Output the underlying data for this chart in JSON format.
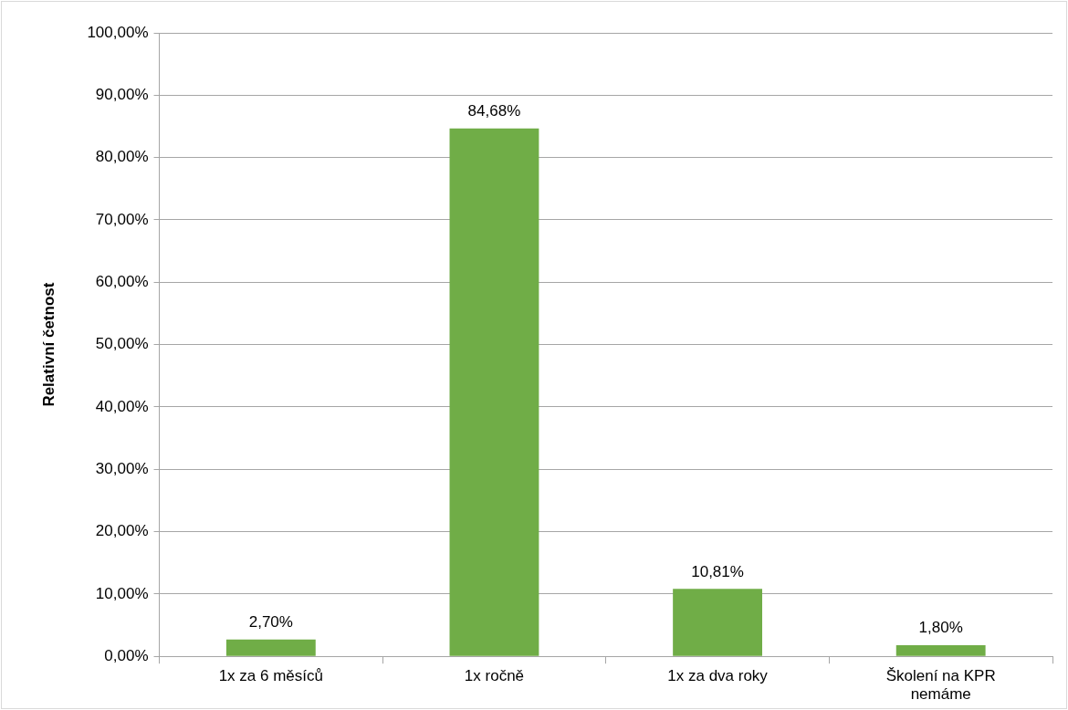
{
  "chart_data": {
    "type": "bar",
    "ylabel": "Relativní četnost",
    "categories": [
      "1x za 6 měsíců",
      "1x ročně",
      "1x za dva roky",
      "Školení na KPR nemáme"
    ],
    "values": [
      2.7,
      84.68,
      10.81,
      1.8
    ],
    "value_labels": [
      "2,70%",
      "84,68%",
      "10,81%",
      "1,80%"
    ],
    "color": "#70ad47",
    "ylim": [
      0,
      100
    ],
    "yticks": [
      {
        "value": 0,
        "label": "0,00%"
      },
      {
        "value": 10,
        "label": "10,00%"
      },
      {
        "value": 20,
        "label": "20,00%"
      },
      {
        "value": 30,
        "label": "30,00%"
      },
      {
        "value": 40,
        "label": "40,00%"
      },
      {
        "value": 50,
        "label": "50,00%"
      },
      {
        "value": 60,
        "label": "60,00%"
      },
      {
        "value": 70,
        "label": "70,00%"
      },
      {
        "value": 80,
        "label": "80,00%"
      },
      {
        "value": 90,
        "label": "90,00%"
      },
      {
        "value": 100,
        "label": "100,00%"
      }
    ],
    "grid": "y",
    "legend": false
  }
}
